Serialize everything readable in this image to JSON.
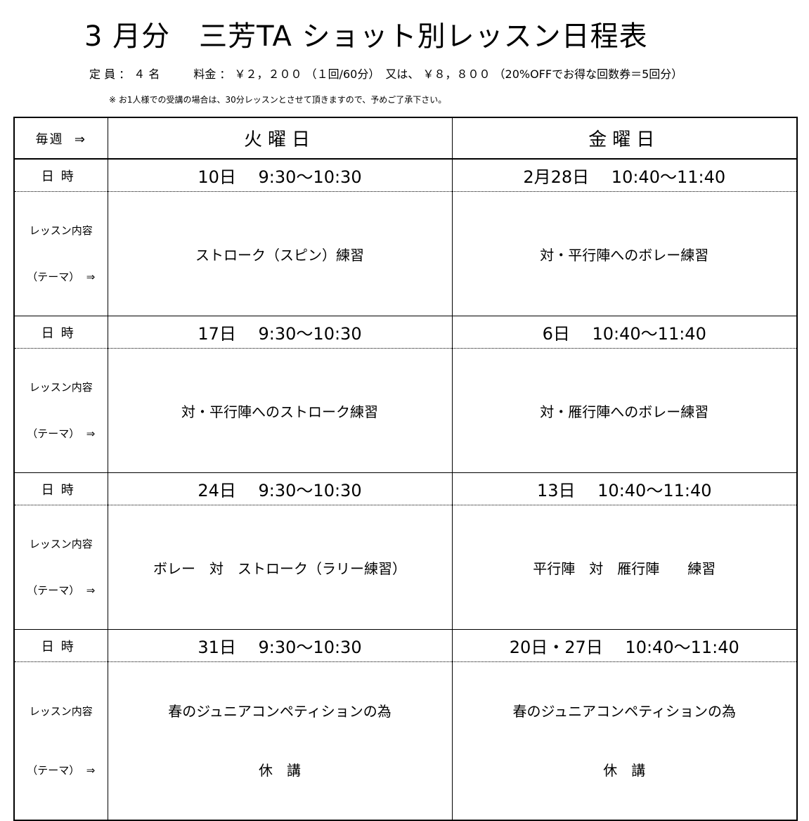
{
  "title": "3 月分　三芳TA ショット別レッスン日程表",
  "info": "定 員 ： ４ 名　　　料金 ： ￥２，２００ （１回/60分）　又は、 ￥８，８００ （20%OFFでお得な回数券＝5回分）",
  "note": "※ お1人様での受講の場合は、30分レッスンとさせて頂きますので、予めご了承下さい。",
  "table": {
    "weekly_label": "毎週  ⇒",
    "col_tue": "火曜日",
    "col_fri": "金曜日",
    "date_label": "日時",
    "topic_label_line1": "レッスン内容",
    "topic_label_line2": "（テーマ）  ⇒",
    "weeks": [
      {
        "tue_date": "10日　 9:30〜10:30",
        "fri_date": "2月28日　 10:40〜11:40",
        "tue_topic": "ストローク（スピン）練習",
        "fri_topic": "対・平行陣へのボレー練習"
      },
      {
        "tue_date": "17日　 9:30〜10:30",
        "fri_date": "6日　 10:40〜11:40",
        "tue_topic": "対・平行陣へのストローク練習",
        "fri_topic": "対・雁行陣へのボレー練習"
      },
      {
        "tue_date": "24日　 9:30〜10:30",
        "fri_date": "13日　 10:40〜11:40",
        "tue_topic": "ボレー　対　ストローク（ラリー練習）",
        "fri_topic": "平行陣　対　雁行陣　　練習"
      },
      {
        "tue_date": "31日　 9:30〜10:30",
        "fri_date": "20日・27日　 10:40〜11:40",
        "tue_topic_line1": "春のジュニアコンペティションの為",
        "tue_topic_line2": "休　講",
        "fri_topic_line1": "春のジュニアコンペティションの為",
        "fri_topic_line2": "休　講"
      }
    ]
  }
}
